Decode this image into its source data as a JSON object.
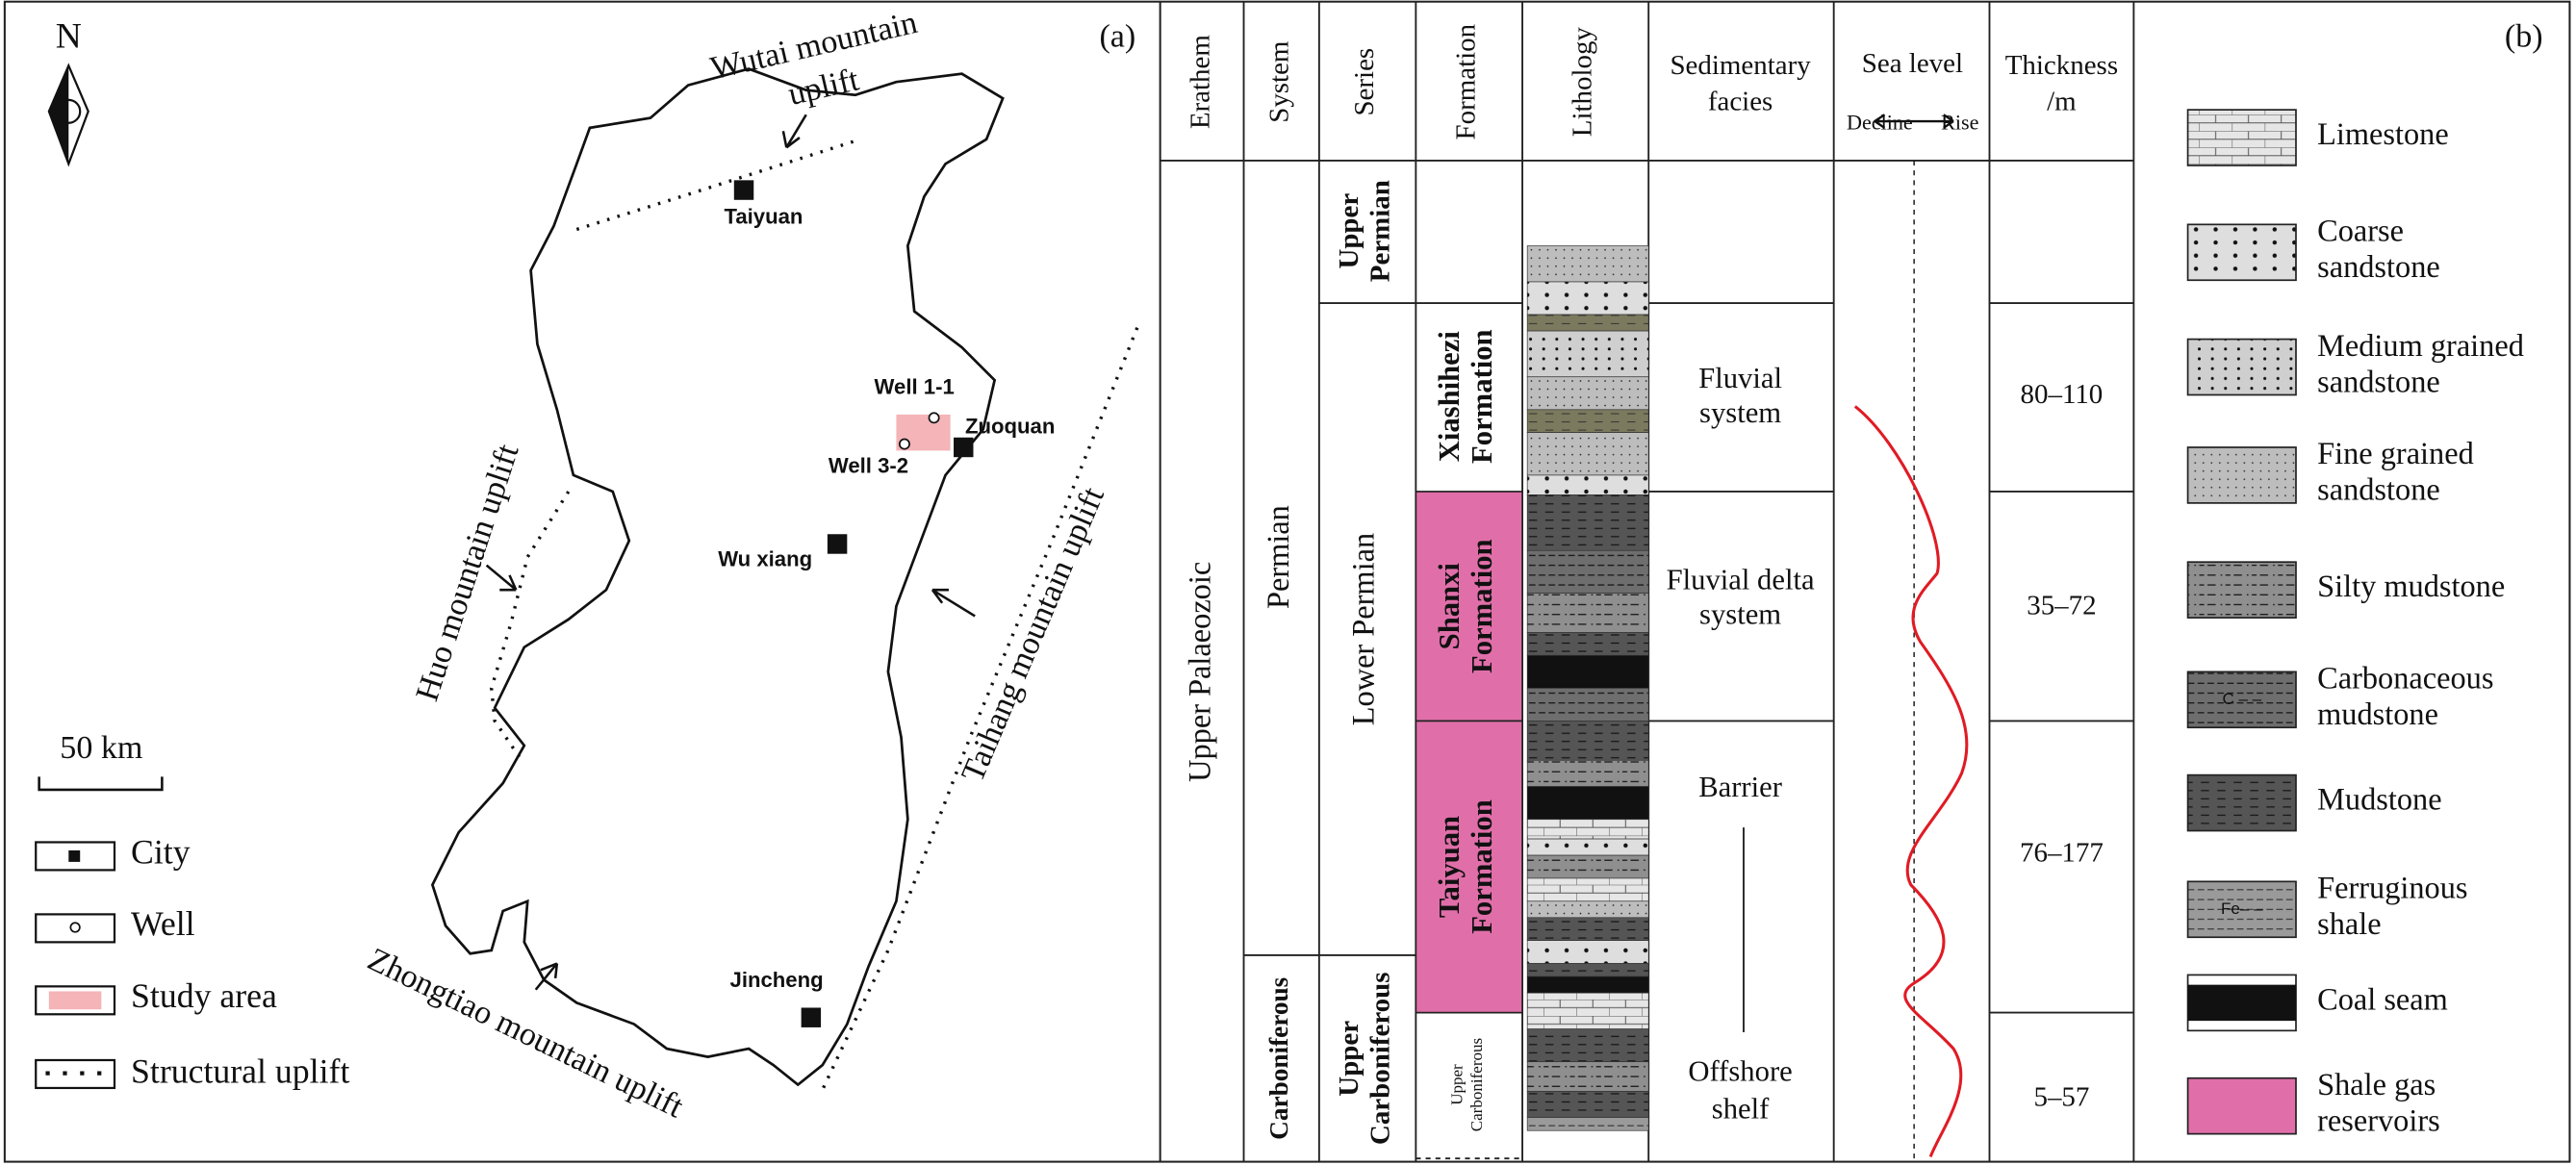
{
  "panel_a": {
    "label": "(a)",
    "north": "N",
    "scale_bar": "50 km",
    "cities": [
      "Taiyuan",
      "Zuoquan",
      "Wu xiang",
      "Jincheng"
    ],
    "wells": [
      "Well 1-1",
      "Well 3-2"
    ],
    "uplifts": {
      "wutai": [
        "Wutai mountain",
        "uplift"
      ],
      "huo": "Huo mountain uplift",
      "taihang": "Taihang mountain uplift",
      "zhongtiao": "Zhongtiao mountain uplift"
    },
    "legend": [
      "City",
      "Well",
      "Study area",
      "Structural uplift"
    ]
  },
  "panel_b": {
    "label": "(b)",
    "headers": {
      "erathem": "Erathem",
      "system": "System",
      "series": "Series",
      "formation": "Formation",
      "lithology": "Lithology",
      "facies": [
        "Sedimentary",
        "facies"
      ],
      "sea_level": "Sea level",
      "decline": "Decline",
      "rise": "Rise",
      "thickness": [
        "Thickness",
        "/m"
      ]
    },
    "erathem": "Upper Palaeozoic",
    "systems": [
      "Permian",
      "Carboniferous"
    ],
    "series": [
      [
        "Upper",
        "Permian"
      ],
      "Lower Permian",
      [
        "Upper",
        "Carboniferous"
      ]
    ],
    "formations": [
      [
        "Xiashihezi",
        "Formation"
      ],
      [
        "Shanxi",
        "Formation"
      ],
      [
        "Taiyuan",
        "Formation"
      ],
      [
        "Upper",
        "Carboniferous"
      ]
    ],
    "facies": [
      [
        "Fluvial",
        "system"
      ],
      [
        "Fluvial delta",
        "system"
      ],
      "Barrier",
      [
        "Offshore",
        "shelf"
      ]
    ],
    "thickness": [
      "80–110",
      "35–72",
      "76–177",
      "5–57"
    ],
    "legend": [
      {
        "label": [
          "Limestone"
        ]
      },
      {
        "label": [
          "Coarse",
          "sandstone"
        ]
      },
      {
        "label": [
          "Medium grained",
          "sandstone"
        ]
      },
      {
        "label": [
          "Fine grained",
          "sandstone"
        ]
      },
      {
        "label": [
          "Silty mudstone"
        ]
      },
      {
        "label": [
          "Carbonaceous",
          "mudstone"
        ],
        "symbol": "C – –"
      },
      {
        "label": [
          "Mudstone"
        ]
      },
      {
        "label": [
          "Ferruginous",
          "shale"
        ],
        "symbol": "Fe– –"
      },
      {
        "label": [
          "Coal seam"
        ]
      },
      {
        "label": [
          "Shale gas",
          "reservoirs"
        ]
      }
    ]
  }
}
